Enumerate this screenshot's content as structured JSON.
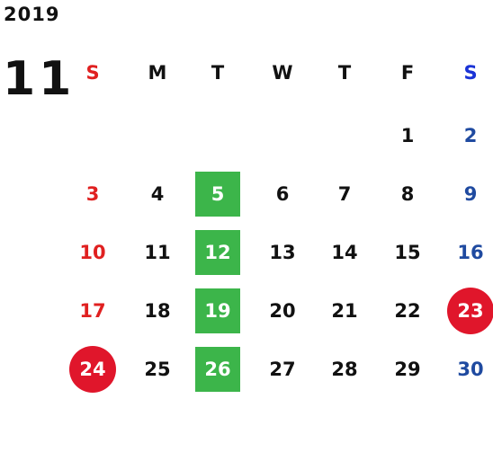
{
  "year": "2019",
  "month": "11",
  "weekdays": [
    "S",
    "M",
    "T",
    "W",
    "T",
    "F",
    "S"
  ],
  "weeks": [
    [
      "",
      "",
      "",
      "",
      "",
      "1",
      "2"
    ],
    [
      "3",
      "4",
      "5",
      "6",
      "7",
      "8",
      "9"
    ],
    [
      "10",
      "11",
      "12",
      "13",
      "14",
      "15",
      "16"
    ],
    [
      "17",
      "18",
      "19",
      "20",
      "21",
      "22",
      "23"
    ],
    [
      "24",
      "25",
      "26",
      "27",
      "28",
      "29",
      "30"
    ]
  ],
  "highlighted_tuesdays": [
    "5",
    "12",
    "19",
    "26"
  ],
  "holidays": [
    "23",
    "24"
  ],
  "colors": {
    "sunday": "#e02020",
    "saturday": "#1f4aa0",
    "saturday_header": "#1a33d6",
    "tuesday_highlight": "#3cb54a",
    "holiday_circle": "#e0162b"
  }
}
